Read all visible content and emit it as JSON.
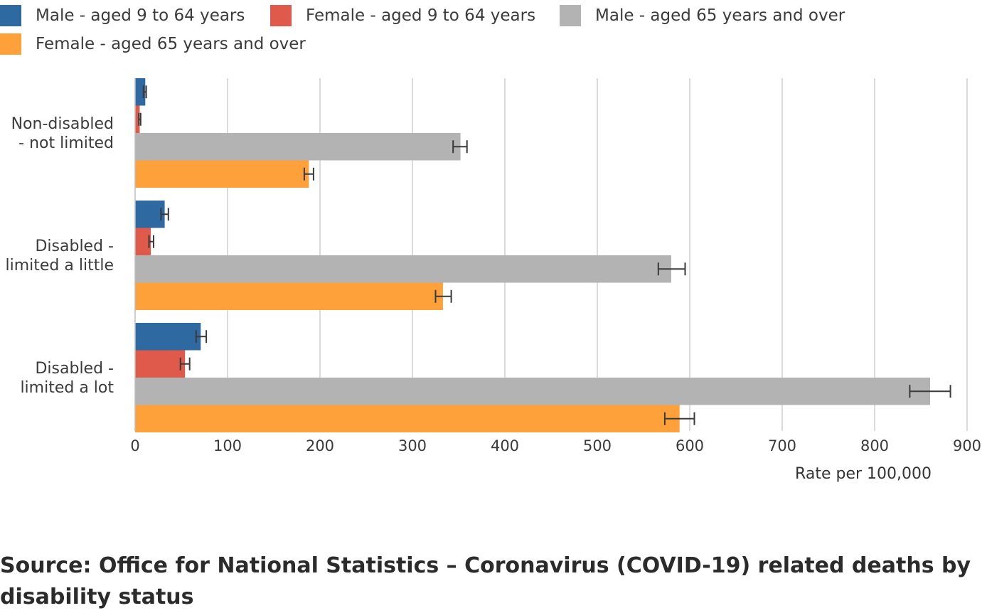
{
  "chart_data": {
    "type": "bar",
    "orientation": "horizontal",
    "categories": [
      [
        "Non-disabled",
        "- not limited"
      ],
      [
        "Disabled -",
        "limited a little"
      ],
      [
        "Disabled -",
        "limited a lot"
      ]
    ],
    "series": [
      {
        "name": "Male - aged 9 to 64 years",
        "color": "#2e6aa1",
        "values": [
          11,
          32,
          71
        ],
        "ci": [
          [
            9,
            12
          ],
          [
            28,
            36
          ],
          [
            66,
            77
          ]
        ]
      },
      {
        "name": "Female - aged 9 to 64 years",
        "color": "#e05a4b",
        "values": [
          5,
          17,
          54
        ],
        "ci": [
          [
            4,
            6
          ],
          [
            15,
            20
          ],
          [
            49,
            59
          ]
        ]
      },
      {
        "name": "Male - aged 65 years and over",
        "color": "#b3b3b3",
        "values": [
          352,
          580,
          860
        ],
        "ci": [
          [
            344,
            359
          ],
          [
            566,
            595
          ],
          [
            838,
            882
          ]
        ]
      },
      {
        "name": "Female - aged 65 years and over",
        "color": "#ffa13a",
        "values": [
          188,
          333,
          589
        ],
        "ci": [
          [
            183,
            193
          ],
          [
            325,
            342
          ],
          [
            573,
            605
          ]
        ]
      }
    ],
    "xticks": [
      0,
      100,
      200,
      300,
      400,
      500,
      600,
      700,
      800,
      900
    ],
    "xlim": [
      0,
      900
    ],
    "xlabel": "Rate per 100,000",
    "grid": true,
    "legend_position": "top"
  },
  "source": "Source: Office for National Statistics – Coronavirus (COVID-19) related deaths by disability status"
}
